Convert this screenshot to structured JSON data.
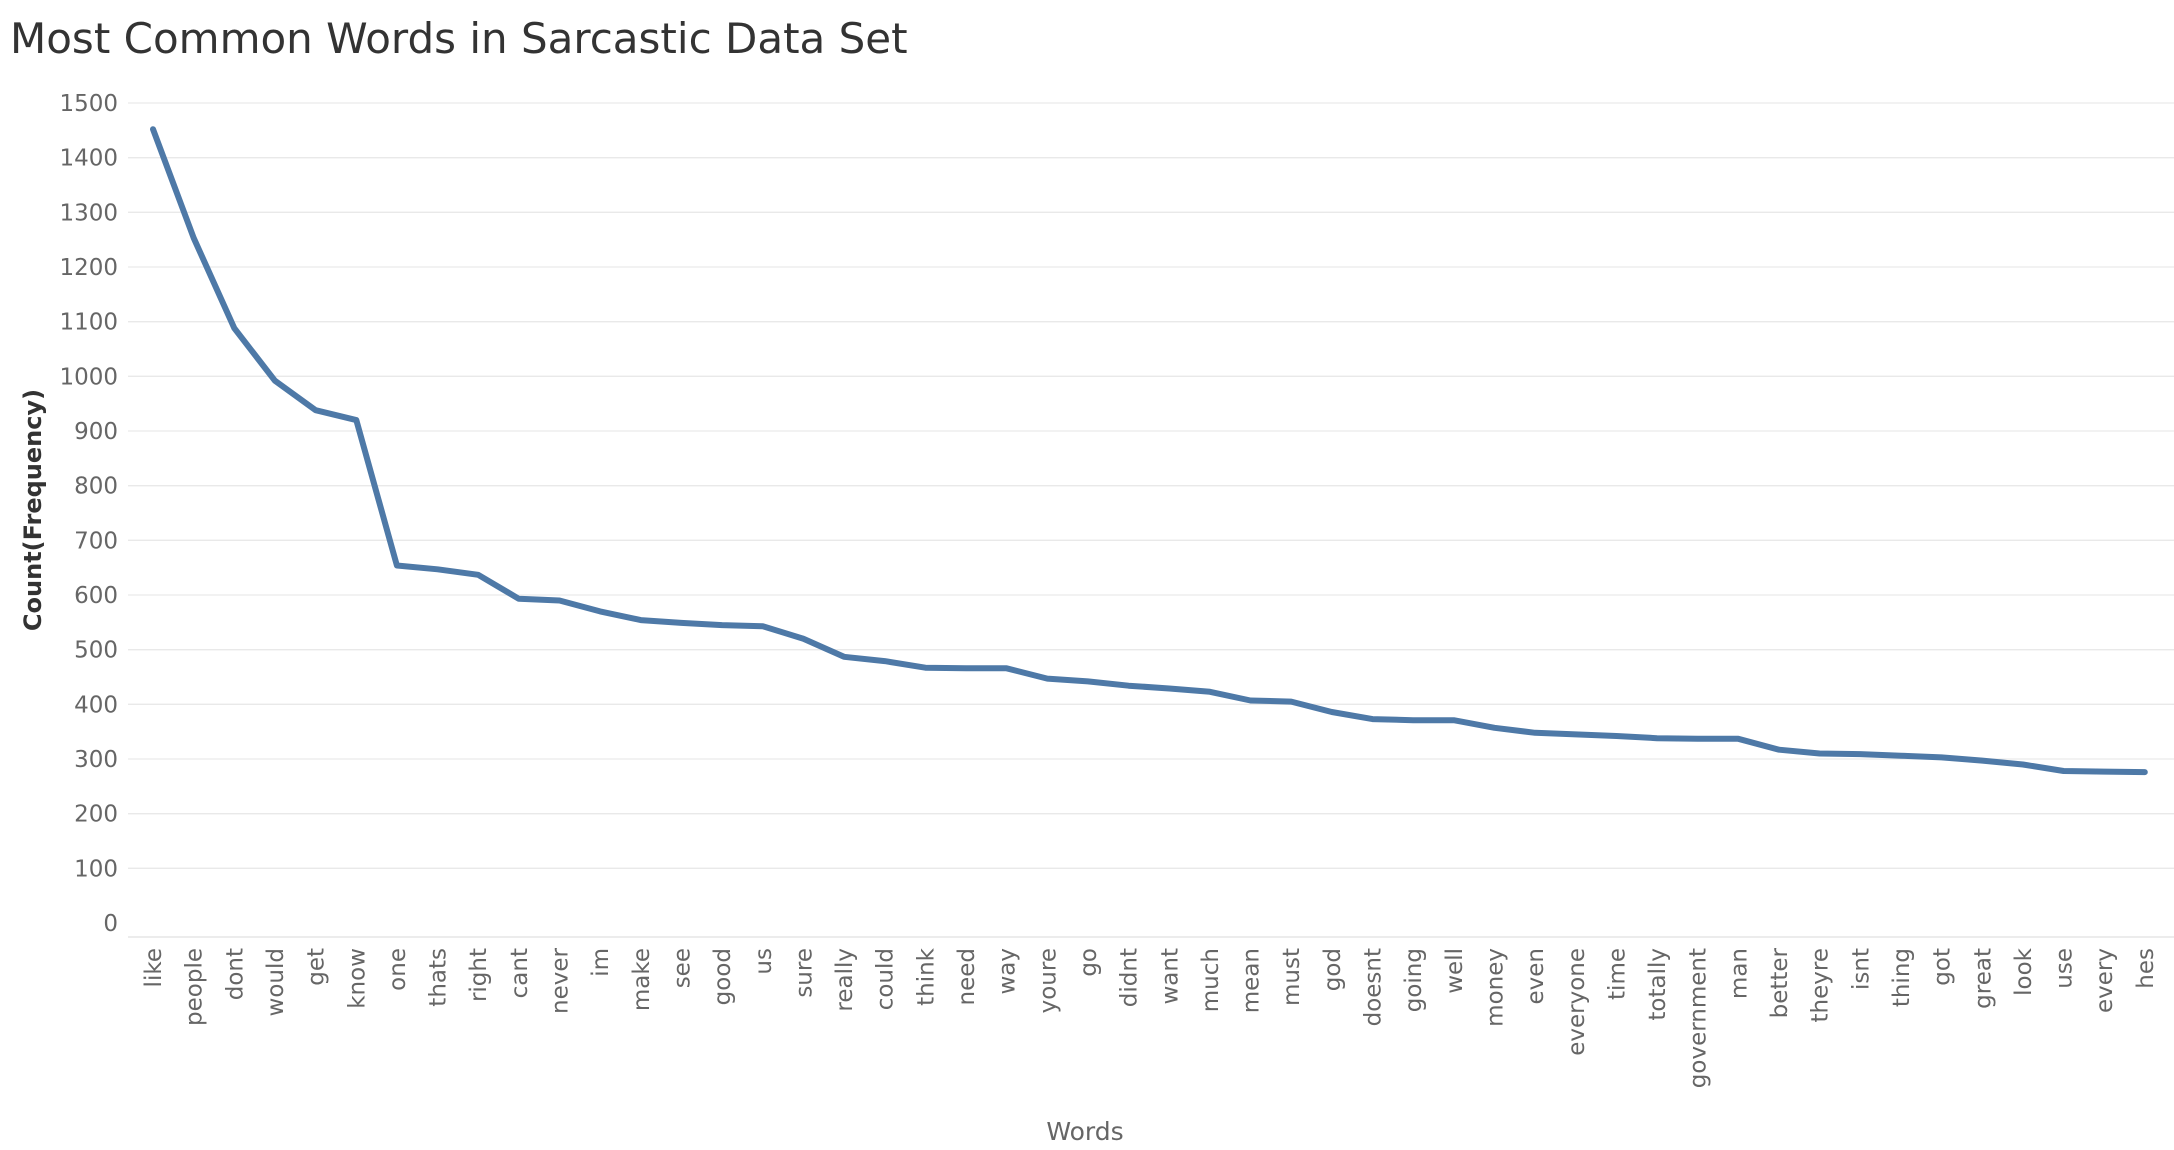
{
  "chart_data": {
    "type": "line",
    "title": "Most Common Words in Sarcastic Data Set",
    "xlabel": "Words",
    "ylabel": "Count(Frequency)",
    "ylim": [
      0,
      1500
    ],
    "yticks": [
      0,
      100,
      200,
      300,
      400,
      500,
      600,
      700,
      800,
      900,
      1000,
      1100,
      1200,
      1300,
      1400,
      1500
    ],
    "grid": true,
    "line_color": "#4e79a7",
    "categories": [
      "like",
      "people",
      "dont",
      "would",
      "get",
      "know",
      "one",
      "thats",
      "right",
      "cant",
      "never",
      "im",
      "make",
      "see",
      "good",
      "us",
      "sure",
      "really",
      "could",
      "think",
      "need",
      "way",
      "youre",
      "go",
      "didnt",
      "want",
      "much",
      "mean",
      "must",
      "god",
      "doesnt",
      "going",
      "well",
      "money",
      "even",
      "everyone",
      "time",
      "totally",
      "government",
      "man",
      "better",
      "theyre",
      "isnt",
      "thing",
      "got",
      "great",
      "look",
      "use",
      "every",
      "hes"
    ],
    "values": [
      1452,
      1253,
      1088,
      992,
      938,
      920,
      654,
      647,
      637,
      593,
      590,
      570,
      554,
      549,
      545,
      543,
      520,
      487,
      479,
      467,
      466,
      466,
      447,
      442,
      434,
      429,
      423,
      407,
      405,
      386,
      373,
      371,
      371,
      357,
      348,
      345,
      342,
      338,
      337,
      337,
      317,
      310,
      309,
      306,
      303,
      297,
      290,
      278,
      277,
      276
    ]
  }
}
